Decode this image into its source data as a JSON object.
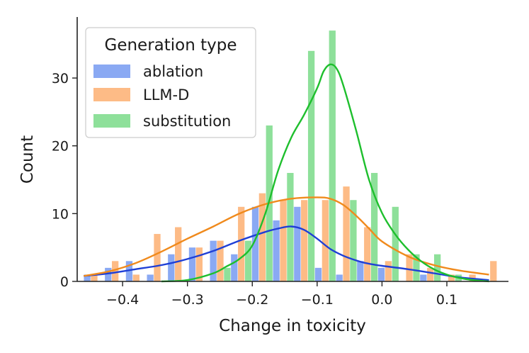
{
  "chart_data": {
    "type": "histogram",
    "title": "",
    "xlabel": "Change in toxicity",
    "ylabel": "Count",
    "xlim": [
      -0.47,
      0.195
    ],
    "ylim": [
      0,
      39
    ],
    "xticks": [
      -0.4,
      -0.3,
      -0.2,
      -0.1,
      0.0,
      0.1
    ],
    "xtick_labels": [
      "−0.4",
      "−0.3",
      "−0.2",
      "−0.1",
      "0.0",
      "0.1"
    ],
    "yticks": [
      0,
      10,
      20,
      30
    ],
    "ytick_labels": [
      "0",
      "10",
      "20",
      "30"
    ],
    "bin_start": -0.46,
    "bin_width": 0.0324,
    "legend": {
      "title": "Generation type",
      "position": "upper-left"
    },
    "series": [
      {
        "name": "ablation",
        "bar_color": "#8aa9f3",
        "line_color": "#1f3fd6",
        "counts": [
          1,
          2,
          3,
          1,
          4,
          5,
          6,
          4,
          11,
          9,
          11,
          2,
          1,
          3,
          2,
          0,
          1,
          0,
          0,
          0
        ],
        "kde": {
          "x": [
            -0.46,
            -0.42,
            -0.38,
            -0.34,
            -0.3,
            -0.26,
            -0.22,
            -0.18,
            -0.16,
            -0.14,
            -0.12,
            -0.1,
            -0.08,
            -0.06,
            -0.04,
            -0.02,
            0.0,
            0.04,
            0.08,
            0.12,
            0.165
          ],
          "y": [
            0.8,
            1.2,
            1.8,
            2.4,
            3.3,
            4.5,
            6.0,
            7.3,
            7.8,
            8.1,
            7.6,
            6.3,
            4.8,
            3.8,
            3.1,
            2.6,
            2.3,
            1.8,
            1.2,
            0.6,
            0.2
          ]
        }
      },
      {
        "name": "LLM-D",
        "bar_color": "#fdbb86",
        "line_color": "#f08a1c",
        "counts": [
          1,
          3,
          1,
          7,
          8,
          5,
          6,
          11,
          13,
          12,
          12,
          12,
          14,
          8,
          3,
          4,
          2,
          1,
          1,
          3
        ],
        "kde": {
          "x": [
            -0.46,
            -0.42,
            -0.38,
            -0.34,
            -0.3,
            -0.26,
            -0.22,
            -0.18,
            -0.14,
            -0.1,
            -0.08,
            -0.06,
            -0.04,
            -0.02,
            0.0,
            0.04,
            0.08,
            0.12,
            0.165
          ],
          "y": [
            0.8,
            1.5,
            2.7,
            4.4,
            6.3,
            8.1,
            10.0,
            11.4,
            12.2,
            12.4,
            12.2,
            11.3,
            9.7,
            7.8,
            5.9,
            3.7,
            2.4,
            1.6,
            1.0
          ]
        }
      },
      {
        "name": "substitution",
        "bar_color": "#8ee09a",
        "line_color": "#1ebf2d",
        "counts": [
          0,
          0,
          0,
          0,
          0,
          0,
          2,
          6,
          23,
          16,
          34,
          37,
          12,
          16,
          11,
          4,
          4,
          1,
          0,
          0
        ],
        "kde": {
          "x": [
            -0.34,
            -0.3,
            -0.26,
            -0.24,
            -0.22,
            -0.2,
            -0.18,
            -0.16,
            -0.14,
            -0.12,
            -0.1,
            -0.09,
            -0.08,
            -0.07,
            -0.06,
            -0.04,
            -0.02,
            0.0,
            0.02,
            0.04,
            0.06,
            0.08,
            0.1,
            0.12,
            0.14,
            0.165
          ],
          "y": [
            0.0,
            0.2,
            1.2,
            2.2,
            3.3,
            5.3,
            10.0,
            16.4,
            21.2,
            24.6,
            28.5,
            31.0,
            32.0,
            31.4,
            29.0,
            22.3,
            15.0,
            10.1,
            7.0,
            4.7,
            3.0,
            1.8,
            1.0,
            0.5,
            0.2,
            0.0
          ]
        }
      }
    ]
  }
}
